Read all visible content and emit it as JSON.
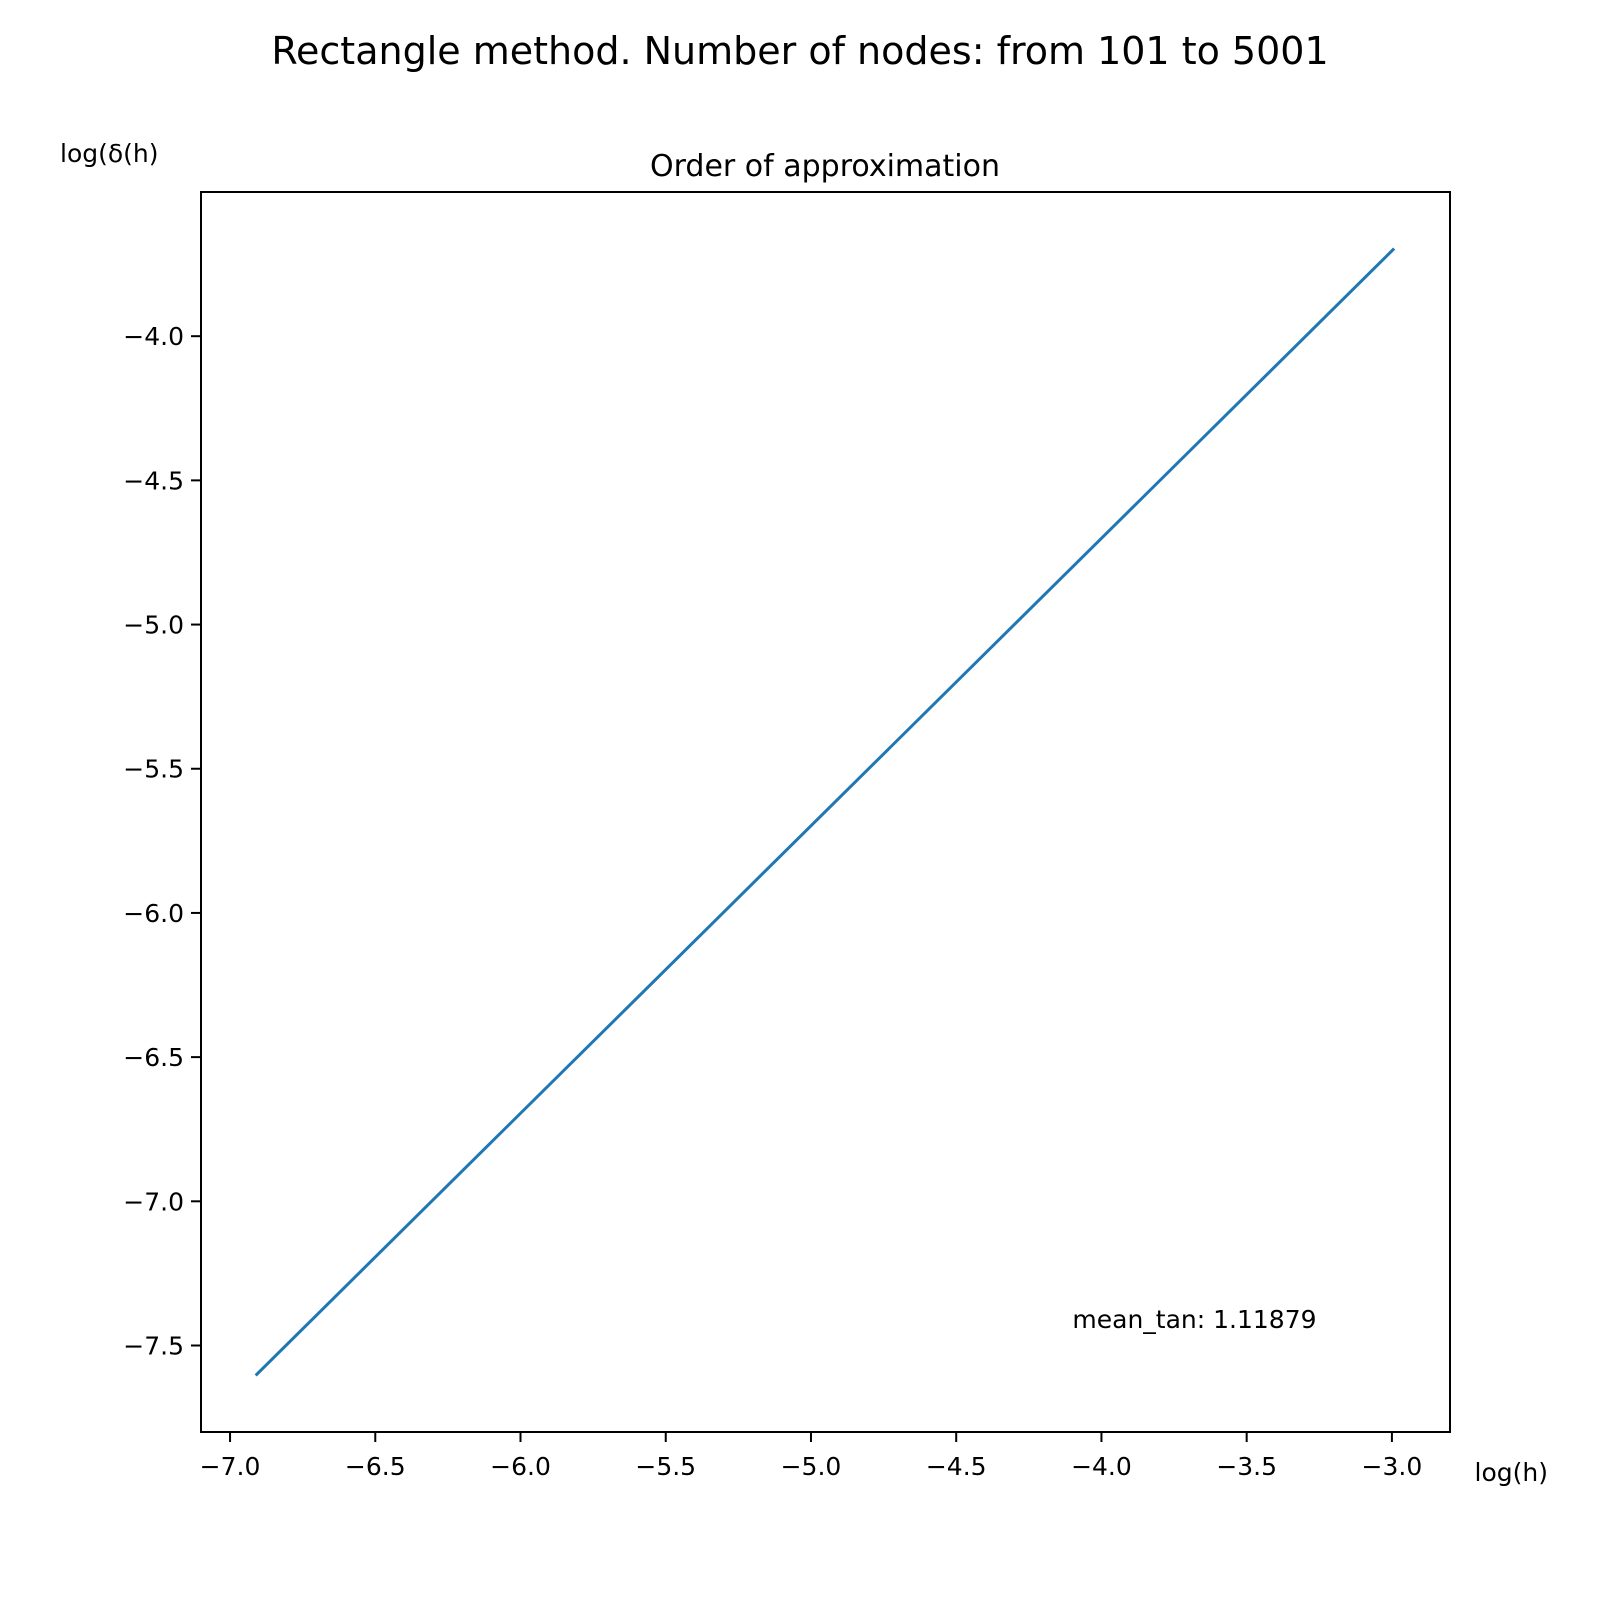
{
  "figure": {
    "suptitle": "Rectangle method. Number of nodes: from 101 to 5001"
  },
  "chart_data": {
    "type": "line",
    "title": "Order of approximation",
    "xlabel": "log(h)",
    "ylabel": "log(δ(h)",
    "xlim": [
      -7.1,
      -2.8
    ],
    "ylim": [
      -7.8,
      -3.5
    ],
    "xticks": [
      -7.0,
      -6.5,
      -6.0,
      -5.5,
      -5.0,
      -4.5,
      -4.0,
      -3.5,
      -3.0
    ],
    "xtick_labels": [
      "−7.0",
      "−6.5",
      "−6.0",
      "−5.5",
      "−5.0",
      "−4.5",
      "−4.0",
      "−3.5",
      "−3.0"
    ],
    "yticks": [
      -4.0,
      -4.5,
      -5.0,
      -5.5,
      -6.0,
      -6.5,
      -7.0,
      -7.5
    ],
    "ytick_labels": [
      "−4.0",
      "−4.5",
      "−5.0",
      "−5.5",
      "−6.0",
      "−6.5",
      "−7.0",
      "−7.5"
    ],
    "grid": false,
    "series": [
      {
        "color": "#1f77b4",
        "x": [
          -6.908,
          -2.996
        ],
        "y": [
          -7.6,
          -3.7
        ]
      }
    ],
    "annotation": {
      "text": "mean_tan: 1.11879",
      "x": -4.1,
      "y": -7.44
    }
  }
}
